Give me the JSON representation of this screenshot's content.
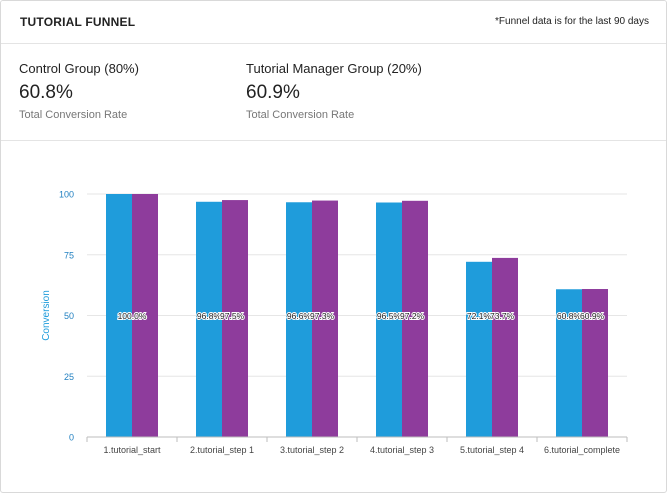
{
  "header": {
    "title": "TUTORIAL FUNNEL",
    "note": "*Funnel data is for the last 90 days"
  },
  "stats": [
    {
      "label": "Control Group (80%)",
      "value": "60.8%",
      "sublabel": "Total Conversion Rate"
    },
    {
      "label": "Tutorial Manager Group (20%)",
      "value": "60.9%",
      "sublabel": "Total Conversion Rate"
    }
  ],
  "chart_data": {
    "type": "bar",
    "ylabel": "Conversion",
    "ylim": [
      0,
      100
    ],
    "yticks": [
      0,
      25,
      50,
      75,
      100
    ],
    "grid": true,
    "categories": [
      "1.tutorial_start",
      "2.tutorial_step 1",
      "3.tutorial_step 2",
      "4.tutorial_step 3",
      "5.tutorial_step 4",
      "6.tutorial_complete"
    ],
    "series": [
      {
        "color": "#1f9cdb",
        "values": [
          100,
          96.8,
          96.6,
          96.5,
          72.1,
          60.8
        ],
        "labels": [
          "",
          "96.8%",
          "96.6%",
          "96.5%",
          "72.1%",
          "60.8%"
        ]
      },
      {
        "color": "#8e3c9c",
        "values": [
          100,
          97.5,
          97.3,
          97.2,
          73.7,
          60.9
        ],
        "labels": [
          "100.0%",
          "97.5%",
          "97.3%",
          "97.2%",
          "73.7%",
          "60.9%"
        ]
      }
    ]
  }
}
